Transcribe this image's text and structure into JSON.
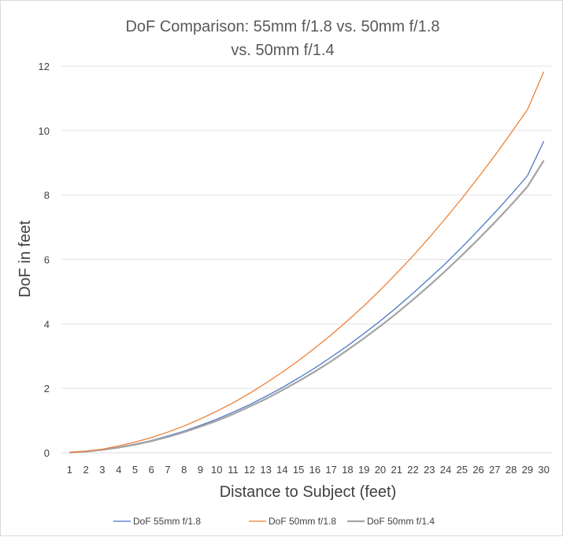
{
  "chart_data": {
    "type": "line",
    "title_lines": [
      "DoF Comparison: 55mm f/1.8 vs. 50mm f/1.8",
      "vs. 50mm f/1.4"
    ],
    "xlabel": "Distance to Subject (feet)",
    "ylabel": "DoF in feet",
    "x": [
      1,
      2,
      3,
      4,
      5,
      6,
      7,
      8,
      9,
      10,
      11,
      12,
      13,
      14,
      15,
      16,
      17,
      18,
      19,
      20,
      21,
      22,
      23,
      24,
      25,
      26,
      27,
      28,
      29,
      30
    ],
    "ylim": [
      0,
      12
    ],
    "yticks": [
      0,
      2,
      4,
      6,
      8,
      10,
      12
    ],
    "grid": true,
    "legend_position": "bottom",
    "series": [
      {
        "name": "DoF 55mm f/1.8",
        "color": "#4472c4",
        "values": [
          0.01,
          0.04,
          0.1,
          0.17,
          0.27,
          0.38,
          0.52,
          0.67,
          0.85,
          1.04,
          1.26,
          1.49,
          1.75,
          2.02,
          2.32,
          2.63,
          2.97,
          3.32,
          3.7,
          4.09,
          4.51,
          4.95,
          5.41,
          5.88,
          6.38,
          6.91,
          7.45,
          8.01,
          8.6,
          9.67
        ]
      },
      {
        "name": "DoF 50mm f/1.8",
        "color": "#ed7d31",
        "values": [
          0.01,
          0.05,
          0.11,
          0.21,
          0.33,
          0.47,
          0.64,
          0.83,
          1.05,
          1.29,
          1.55,
          1.84,
          2.16,
          2.5,
          2.86,
          3.25,
          3.66,
          4.1,
          4.56,
          5.05,
          5.57,
          6.11,
          6.68,
          7.28,
          7.9,
          8.55,
          9.22,
          9.93,
          10.65,
          11.83
        ]
      },
      {
        "name": "DoF 50mm f/1.4",
        "color": "#a5a5a5",
        "values": [
          0.01,
          0.04,
          0.09,
          0.16,
          0.25,
          0.36,
          0.49,
          0.64,
          0.81,
          0.99,
          1.2,
          1.43,
          1.67,
          1.94,
          2.22,
          2.52,
          2.84,
          3.19,
          3.55,
          3.93,
          4.33,
          4.75,
          5.19,
          5.65,
          6.13,
          6.63,
          7.15,
          7.69,
          8.26,
          9.07
        ]
      }
    ]
  }
}
